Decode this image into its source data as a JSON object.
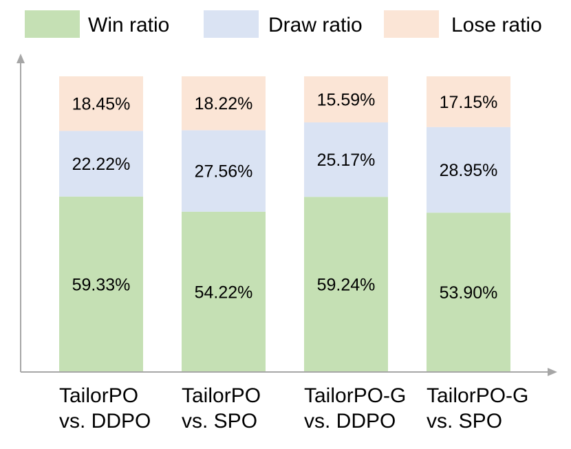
{
  "chart_data": {
    "type": "bar",
    "stacked": true,
    "categories": [
      [
        "TailorPO",
        "vs. DDPO"
      ],
      [
        "TailorPO",
        "vs. SPO"
      ],
      [
        "TailorPO-G",
        "vs. DDPO"
      ],
      [
        "TailorPO-G",
        "vs. SPO"
      ]
    ],
    "series": [
      {
        "name": "Win ratio",
        "color": "#c5e0b4",
        "values": [
          59.33,
          54.22,
          59.24,
          53.9
        ],
        "labels": [
          "59.33%",
          "54.22%",
          "59.24%",
          "53.90%"
        ]
      },
      {
        "name": "Draw ratio",
        "color": "#dae3f3",
        "values": [
          22.22,
          27.56,
          25.17,
          28.95
        ],
        "labels": [
          "22.22%",
          "27.56%",
          "25.17%",
          "28.95%"
        ]
      },
      {
        "name": "Lose ratio",
        "color": "#fbe5d6",
        "values": [
          18.45,
          18.22,
          15.59,
          17.15
        ],
        "labels": [
          "18.45%",
          "18.22%",
          "15.59%",
          "17.15%"
        ]
      }
    ],
    "ylim": [
      0,
      100
    ],
    "title": "",
    "xlabel": "",
    "ylabel": "",
    "legend_position": "top",
    "grid": false,
    "axis_color": "#a6a6a6"
  }
}
